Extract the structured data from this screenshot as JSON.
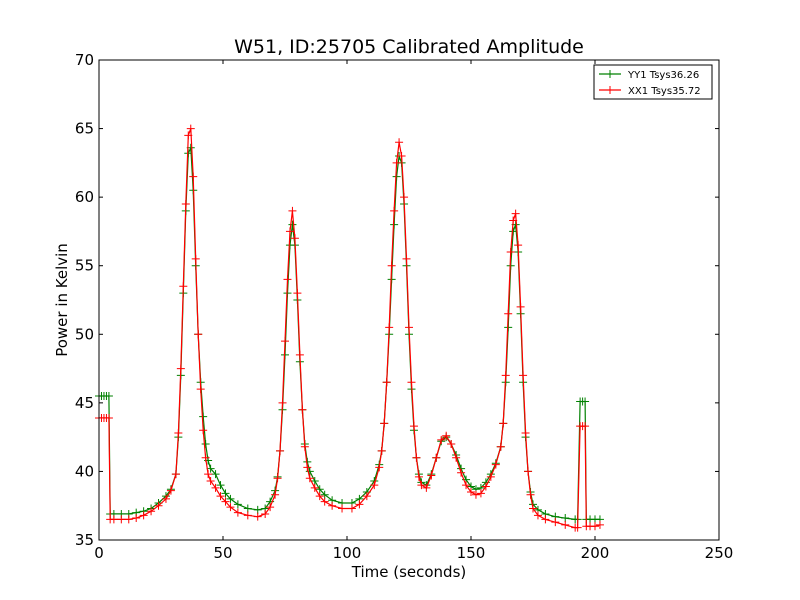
{
  "chart_data": {
    "type": "line",
    "title": "W51, ID:25705 Calibrated Amplitude",
    "xlabel": "Time (seconds)",
    "ylabel": "Power in Kelvin",
    "xlim": [
      0,
      250
    ],
    "ylim": [
      35,
      70
    ],
    "xticks": [
      0,
      50,
      100,
      150,
      200,
      250
    ],
    "yticks": [
      35,
      40,
      45,
      50,
      55,
      60,
      65,
      70
    ],
    "grid": false,
    "legend_position": "top-right",
    "series": [
      {
        "name": "YY1 Tsys36.26",
        "color": "#008000",
        "marker": "plus",
        "points": [
          [
            0,
            45.5
          ],
          [
            1,
            45.5
          ],
          [
            2,
            45.5
          ],
          [
            3,
            45.5
          ],
          [
            4,
            45.5
          ],
          [
            4.5,
            36.9
          ],
          [
            6,
            36.9
          ],
          [
            9,
            36.9
          ],
          [
            12,
            36.9
          ],
          [
            15,
            37
          ],
          [
            18,
            37.1
          ],
          [
            21,
            37.3
          ],
          [
            24,
            37.7
          ],
          [
            27,
            38.2
          ],
          [
            29,
            38.7
          ],
          [
            31,
            39.8
          ],
          [
            32,
            42.5
          ],
          [
            33,
            47
          ],
          [
            34,
            53
          ],
          [
            35,
            59
          ],
          [
            36,
            63.2
          ],
          [
            37,
            63.6
          ],
          [
            38,
            60.5
          ],
          [
            39,
            55
          ],
          [
            40,
            50
          ],
          [
            41,
            46.5
          ],
          [
            42,
            44
          ],
          [
            43,
            42
          ],
          [
            44,
            40.8
          ],
          [
            45,
            40.2
          ],
          [
            47,
            39.8
          ],
          [
            49,
            39
          ],
          [
            51,
            38.4
          ],
          [
            53,
            38
          ],
          [
            56,
            37.6
          ],
          [
            60,
            37.3
          ],
          [
            64,
            37.2
          ],
          [
            67,
            37.3
          ],
          [
            69,
            37.8
          ],
          [
            71,
            38.6
          ],
          [
            72,
            39.6
          ],
          [
            73,
            41.5
          ],
          [
            74,
            44.5
          ],
          [
            75,
            48.5
          ],
          [
            76,
            53
          ],
          [
            77,
            56.5
          ],
          [
            78,
            58
          ],
          [
            79,
            56.5
          ],
          [
            80,
            52.5
          ],
          [
            81,
            48
          ],
          [
            82,
            44.5
          ],
          [
            83,
            42
          ],
          [
            84,
            40.7
          ],
          [
            85,
            40
          ],
          [
            87,
            39.3
          ],
          [
            89,
            38.7
          ],
          [
            91,
            38.3
          ],
          [
            94,
            37.9
          ],
          [
            98,
            37.7
          ],
          [
            102,
            37.7
          ],
          [
            105,
            38
          ],
          [
            108,
            38.5
          ],
          [
            111,
            39.3
          ],
          [
            113,
            40.5
          ],
          [
            114,
            41.5
          ],
          [
            115,
            43.5
          ],
          [
            116,
            46.5
          ],
          [
            117,
            50
          ],
          [
            118,
            54
          ],
          [
            119,
            58
          ],
          [
            120,
            61.5
          ],
          [
            121,
            63
          ],
          [
            122,
            62.5
          ],
          [
            123,
            59.5
          ],
          [
            124,
            55
          ],
          [
            125,
            50
          ],
          [
            126,
            46
          ],
          [
            127,
            43
          ],
          [
            128,
            41
          ],
          [
            129,
            39.8
          ],
          [
            130,
            39.2
          ],
          [
            132,
            39
          ],
          [
            134,
            39.8
          ],
          [
            136,
            41
          ],
          [
            138,
            42.2
          ],
          [
            140,
            42.5
          ],
          [
            142,
            42
          ],
          [
            144,
            41.2
          ],
          [
            146,
            40.2
          ],
          [
            148,
            39.4
          ],
          [
            150,
            38.9
          ],
          [
            152,
            38.7
          ],
          [
            154,
            38.8
          ],
          [
            156,
            39.2
          ],
          [
            158,
            39.8
          ],
          [
            160,
            40.6
          ],
          [
            162,
            41.8
          ],
          [
            163,
            43.5
          ],
          [
            164,
            46.5
          ],
          [
            165,
            50.5
          ],
          [
            166,
            55
          ],
          [
            167,
            57.5
          ],
          [
            168,
            58
          ],
          [
            169,
            56
          ],
          [
            170,
            51.5
          ],
          [
            171,
            46.5
          ],
          [
            172,
            42.5
          ],
          [
            173,
            40
          ],
          [
            174,
            38.5
          ],
          [
            175,
            37.6
          ],
          [
            177,
            37.2
          ],
          [
            180,
            36.9
          ],
          [
            184,
            36.7
          ],
          [
            188,
            36.6
          ],
          [
            192,
            36.5
          ],
          [
            193,
            36.5
          ],
          [
            194,
            45.1
          ],
          [
            195,
            45.1
          ],
          [
            196,
            45.1
          ],
          [
            196.5,
            36.5
          ],
          [
            198,
            36.5
          ],
          [
            200,
            36.5
          ],
          [
            202,
            36.5
          ]
        ]
      },
      {
        "name": "XX1 Tsys35.72",
        "color": "#ff0000",
        "marker": "plus",
        "points": [
          [
            0,
            43.9
          ],
          [
            1,
            43.9
          ],
          [
            2,
            43.9
          ],
          [
            3,
            43.9
          ],
          [
            4,
            43.9
          ],
          [
            4.5,
            36.5
          ],
          [
            6,
            36.5
          ],
          [
            9,
            36.5
          ],
          [
            12,
            36.5
          ],
          [
            15,
            36.6
          ],
          [
            18,
            36.8
          ],
          [
            21,
            37.1
          ],
          [
            24,
            37.5
          ],
          [
            27,
            38
          ],
          [
            29,
            38.6
          ],
          [
            31,
            39.8
          ],
          [
            32,
            42.8
          ],
          [
            33,
            47.5
          ],
          [
            34,
            53.5
          ],
          [
            35,
            59.5
          ],
          [
            36,
            64.5
          ],
          [
            37,
            65
          ],
          [
            38,
            61.5
          ],
          [
            39,
            55.5
          ],
          [
            40,
            50
          ],
          [
            41,
            46
          ],
          [
            42,
            43
          ],
          [
            43,
            41
          ],
          [
            44,
            39.8
          ],
          [
            45,
            39.3
          ],
          [
            47,
            38.8
          ],
          [
            49,
            38.2
          ],
          [
            51,
            37.8
          ],
          [
            53,
            37.4
          ],
          [
            56,
            37
          ],
          [
            60,
            36.8
          ],
          [
            64,
            36.7
          ],
          [
            67,
            36.9
          ],
          [
            69,
            37.4
          ],
          [
            71,
            38.3
          ],
          [
            72,
            39.5
          ],
          [
            73,
            41.5
          ],
          [
            74,
            45
          ],
          [
            75,
            49.5
          ],
          [
            76,
            54
          ],
          [
            77,
            57.5
          ],
          [
            78,
            59
          ],
          [
            79,
            57
          ],
          [
            80,
            53
          ],
          [
            81,
            48.5
          ],
          [
            82,
            44.5
          ],
          [
            83,
            41.8
          ],
          [
            84,
            40.3
          ],
          [
            85,
            39.5
          ],
          [
            87,
            38.8
          ],
          [
            89,
            38.2
          ],
          [
            91,
            37.8
          ],
          [
            94,
            37.5
          ],
          [
            98,
            37.3
          ],
          [
            102,
            37.3
          ],
          [
            105,
            37.6
          ],
          [
            108,
            38.2
          ],
          [
            111,
            39
          ],
          [
            113,
            40.3
          ],
          [
            114,
            41.5
          ],
          [
            115,
            43.5
          ],
          [
            116,
            46.5
          ],
          [
            117,
            50.5
          ],
          [
            118,
            55
          ],
          [
            119,
            59
          ],
          [
            120,
            62.5
          ],
          [
            121,
            64
          ],
          [
            122,
            63
          ],
          [
            123,
            60
          ],
          [
            124,
            55.5
          ],
          [
            125,
            50.5
          ],
          [
            126,
            46.5
          ],
          [
            127,
            43.3
          ],
          [
            128,
            41
          ],
          [
            129,
            39.6
          ],
          [
            130,
            39
          ],
          [
            132,
            38.8
          ],
          [
            134,
            39.7
          ],
          [
            136,
            41
          ],
          [
            138,
            42.3
          ],
          [
            140,
            42.6
          ],
          [
            142,
            42
          ],
          [
            144,
            41
          ],
          [
            146,
            39.9
          ],
          [
            148,
            39
          ],
          [
            150,
            38.5
          ],
          [
            152,
            38.3
          ],
          [
            154,
            38.4
          ],
          [
            156,
            38.9
          ],
          [
            158,
            39.6
          ],
          [
            160,
            40.5
          ],
          [
            162,
            41.8
          ],
          [
            163,
            43.5
          ],
          [
            164,
            47
          ],
          [
            165,
            51.5
          ],
          [
            166,
            56
          ],
          [
            167,
            58.3
          ],
          [
            168,
            58.8
          ],
          [
            169,
            56.5
          ],
          [
            170,
            52
          ],
          [
            171,
            47
          ],
          [
            172,
            42.8
          ],
          [
            173,
            40
          ],
          [
            174,
            38.3
          ],
          [
            175,
            37.3
          ],
          [
            177,
            36.8
          ],
          [
            180,
            36.5
          ],
          [
            184,
            36.3
          ],
          [
            188,
            36.1
          ],
          [
            192,
            35.9
          ],
          [
            193,
            35.9
          ],
          [
            194,
            43.3
          ],
          [
            195,
            43.3
          ],
          [
            196,
            43.3
          ],
          [
            196.5,
            36
          ],
          [
            198,
            36
          ],
          [
            200,
            36
          ],
          [
            202,
            36.1
          ]
        ]
      }
    ]
  }
}
